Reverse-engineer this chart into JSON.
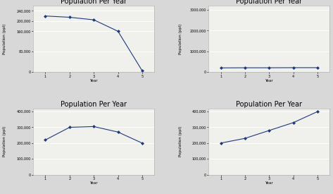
{
  "title": "Population Per Year",
  "xlabel": "Year",
  "ylabel": "Population (ppl)",
  "charts": [
    {
      "x": [
        1,
        2,
        3,
        4,
        5
      ],
      "y": [
        220000,
        215000,
        205000,
        160000,
        5000
      ],
      "ylim": [
        0,
        260000
      ],
      "yticks": [
        0,
        80000,
        160000,
        200000,
        240000
      ],
      "ytick_labels": [
        "0",
        "80,000",
        "160,000",
        "200,000",
        "240,000"
      ]
    },
    {
      "x": [
        1,
        2,
        3,
        4,
        5
      ],
      "y": [
        200000,
        205000,
        205000,
        210000,
        210000
      ],
      "ylim": [
        0,
        3200000
      ],
      "yticks": [
        0,
        1000000,
        2000000,
        3000000
      ],
      "ytick_labels": [
        "0",
        "1000,000",
        "2000,000",
        "3000,000"
      ]
    },
    {
      "x": [
        1,
        2,
        3,
        4,
        5
      ],
      "y": [
        220000,
        300000,
        305000,
        270000,
        200000
      ],
      "ylim": [
        0,
        420000
      ],
      "yticks": [
        0,
        100000,
        200000,
        300000,
        400000
      ],
      "ytick_labels": [
        "0",
        "100,000",
        "200,000",
        "300,000",
        "400,000"
      ]
    },
    {
      "x": [
        1,
        2,
        3,
        4,
        5
      ],
      "y": [
        200000,
        230000,
        280000,
        330000,
        400000
      ],
      "ylim": [
        0,
        420000
      ],
      "yticks": [
        0,
        100000,
        200000,
        300000,
        400000
      ],
      "ytick_labels": [
        "0",
        "100,000",
        "200,000",
        "300,000",
        "400,000"
      ]
    }
  ],
  "line_color": "#1f3a7a",
  "marker": "D",
  "marker_size": 2,
  "bg_color": "#d8d8d8",
  "panel_bg": "#f0f0ec",
  "title_fontsize": 7,
  "label_fontsize": 4,
  "tick_fontsize": 3.5
}
